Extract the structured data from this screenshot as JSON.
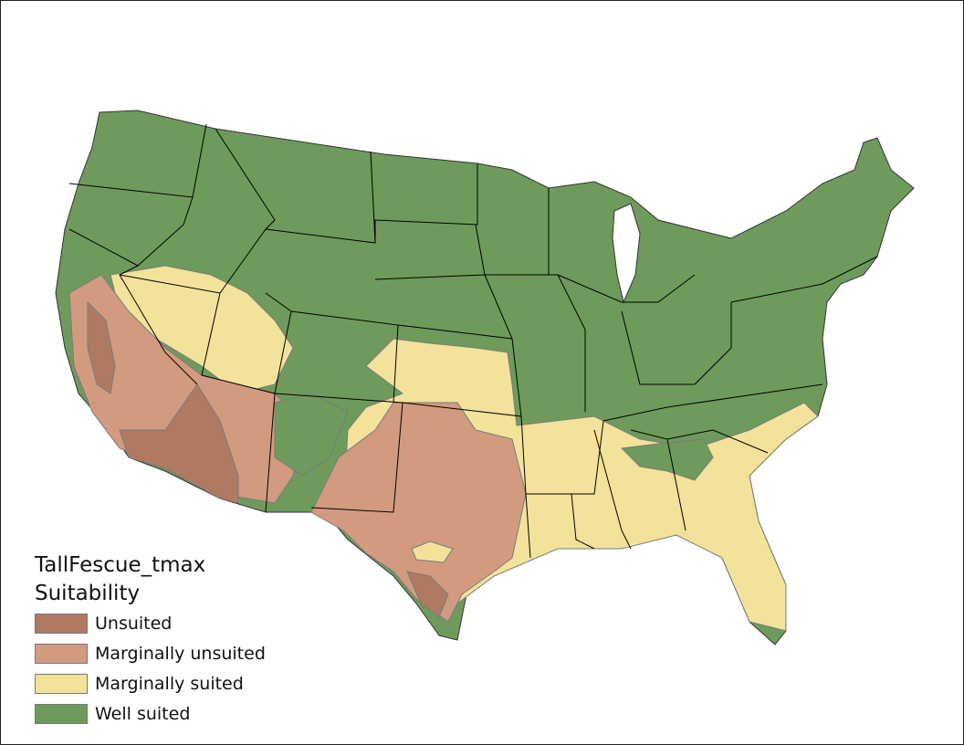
{
  "legend": {
    "title": "TallFescue_tmax",
    "subtitle": "Suitability",
    "items": [
      {
        "label": "Unsuited",
        "color": "#b07a62"
      },
      {
        "label": "Marginally unsuited",
        "color": "#d29b80"
      },
      {
        "label": "Marginally suited",
        "color": "#f3e29a"
      },
      {
        "label": "Well suited",
        "color": "#6e9b5b"
      }
    ]
  },
  "map": {
    "region": "Contiguous United States",
    "outline_color": "#000000",
    "class_edge_color": "#7a7a7a"
  }
}
